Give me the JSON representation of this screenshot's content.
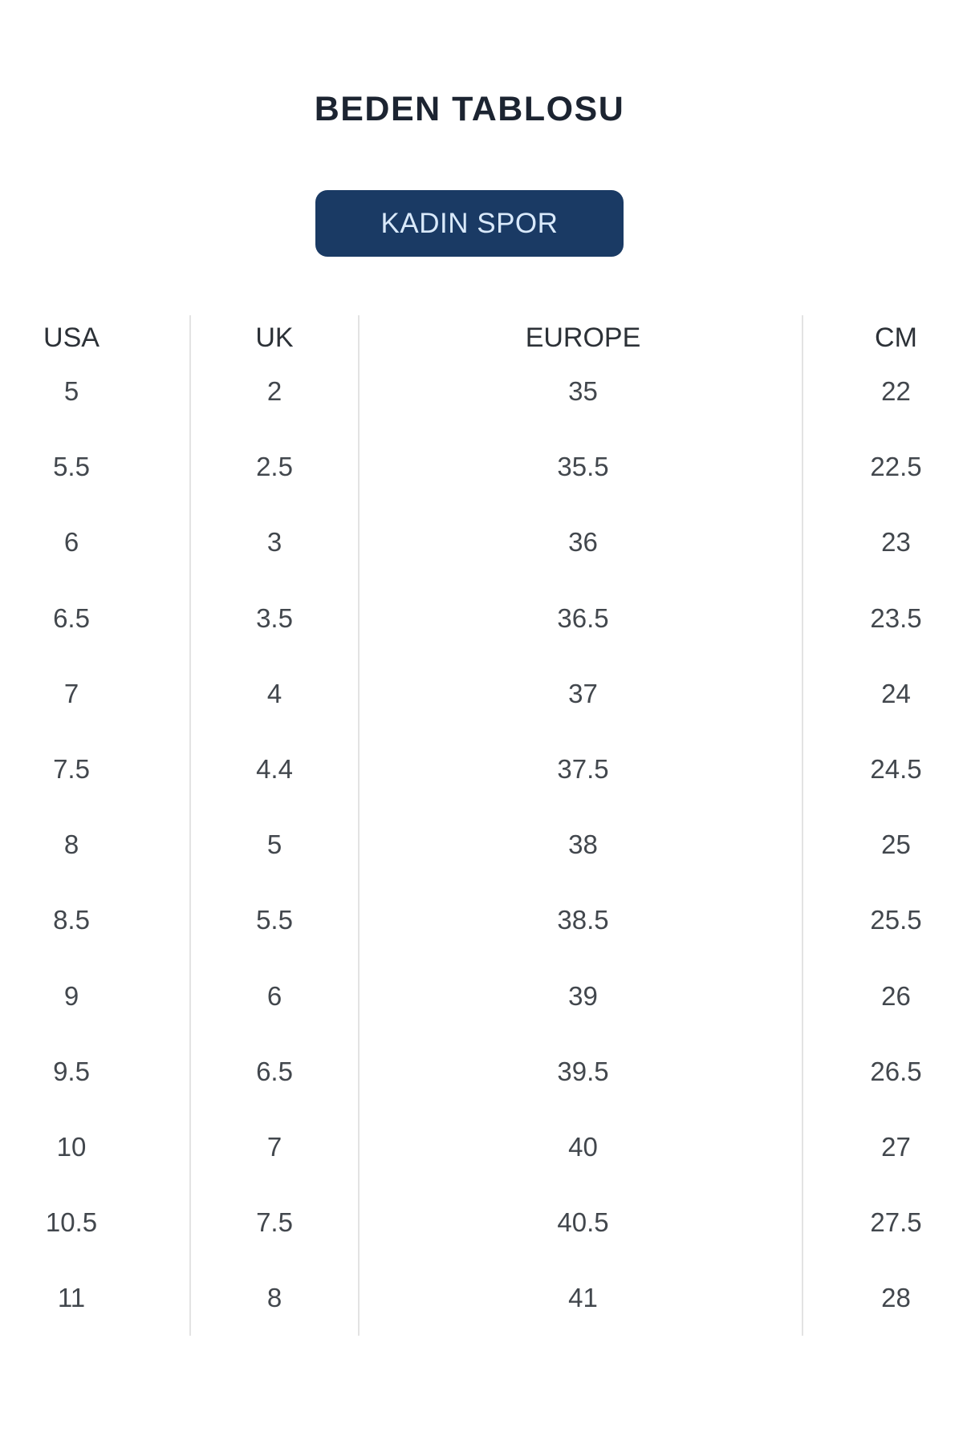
{
  "page": {
    "title": "BEDEN TABLOSU"
  },
  "category_button": {
    "label": "KADIN SPOR"
  },
  "size_table": {
    "columns": [
      "USA",
      "UK",
      "EUROPE",
      "CM"
    ],
    "rows": [
      [
        "5",
        "2",
        "35",
        "22"
      ],
      [
        "5.5",
        "2.5",
        "35.5",
        "22.5"
      ],
      [
        "6",
        "3",
        "36",
        "23"
      ],
      [
        "6.5",
        "3.5",
        "36.5",
        "23.5"
      ],
      [
        "7",
        "4",
        "37",
        "24"
      ],
      [
        "7.5",
        "4.4",
        "37.5",
        "24.5"
      ],
      [
        "8",
        "5",
        "38",
        "25"
      ],
      [
        "8.5",
        "5.5",
        "38.5",
        "25.5"
      ],
      [
        "9",
        "6",
        "39",
        "26"
      ],
      [
        "9.5",
        "6.5",
        "39.5",
        "26.5"
      ],
      [
        "10",
        "7",
        "40",
        "27"
      ],
      [
        "10.5",
        "7.5",
        "40.5",
        "27.5"
      ],
      [
        "11",
        "8",
        "41",
        "28"
      ]
    ]
  },
  "colors": {
    "title_text": "#1c2431",
    "button_bg": "#1a3a64",
    "button_text": "#d9e9fa",
    "header_text": "#2c3137",
    "cell_text": "#42474d",
    "separator": "#e3e3e3",
    "page_bg": "#ffffff"
  }
}
